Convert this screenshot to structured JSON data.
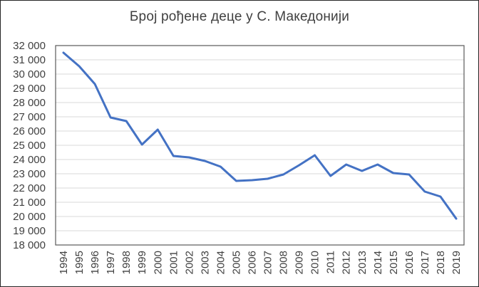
{
  "chart_data": {
    "type": "line",
    "title": "Број рођене деце у С. Македонији",
    "xlabel": "",
    "ylabel": "",
    "legend": "none",
    "grid": "horizontal-only",
    "categories": [
      "1994",
      "1995",
      "1996",
      "1997",
      "1998",
      "1999",
      "2000",
      "2001",
      "2002",
      "2003",
      "2004",
      "2005",
      "2006",
      "2007",
      "2008",
      "2009",
      "2010",
      "2011",
      "2012",
      "2013",
      "2014",
      "2015",
      "2016",
      "2017",
      "2018",
      "2019"
    ],
    "series": [
      {
        "name": "Број рођене деце",
        "values": [
          31500,
          30550,
          29300,
          26950,
          26700,
          25050,
          26100,
          24250,
          24150,
          23900,
          23500,
          22500,
          22550,
          22650,
          22950,
          23600,
          24300,
          22850,
          23650,
          23200,
          23650,
          23050,
          22950,
          21750,
          21400,
          19850
        ]
      }
    ],
    "ylim": [
      18000,
      32000
    ],
    "ytick_step": 1000,
    "ytick_format": "space-thousands",
    "xtick_rotation": -90,
    "colors": {
      "line": "#4472C4",
      "gridline": "#D9D9D9",
      "plot_border": "#595959",
      "tick_text": "#404040",
      "title_text": "#404040",
      "background": "#FFFFFF",
      "frame_border": "#262626"
    }
  }
}
